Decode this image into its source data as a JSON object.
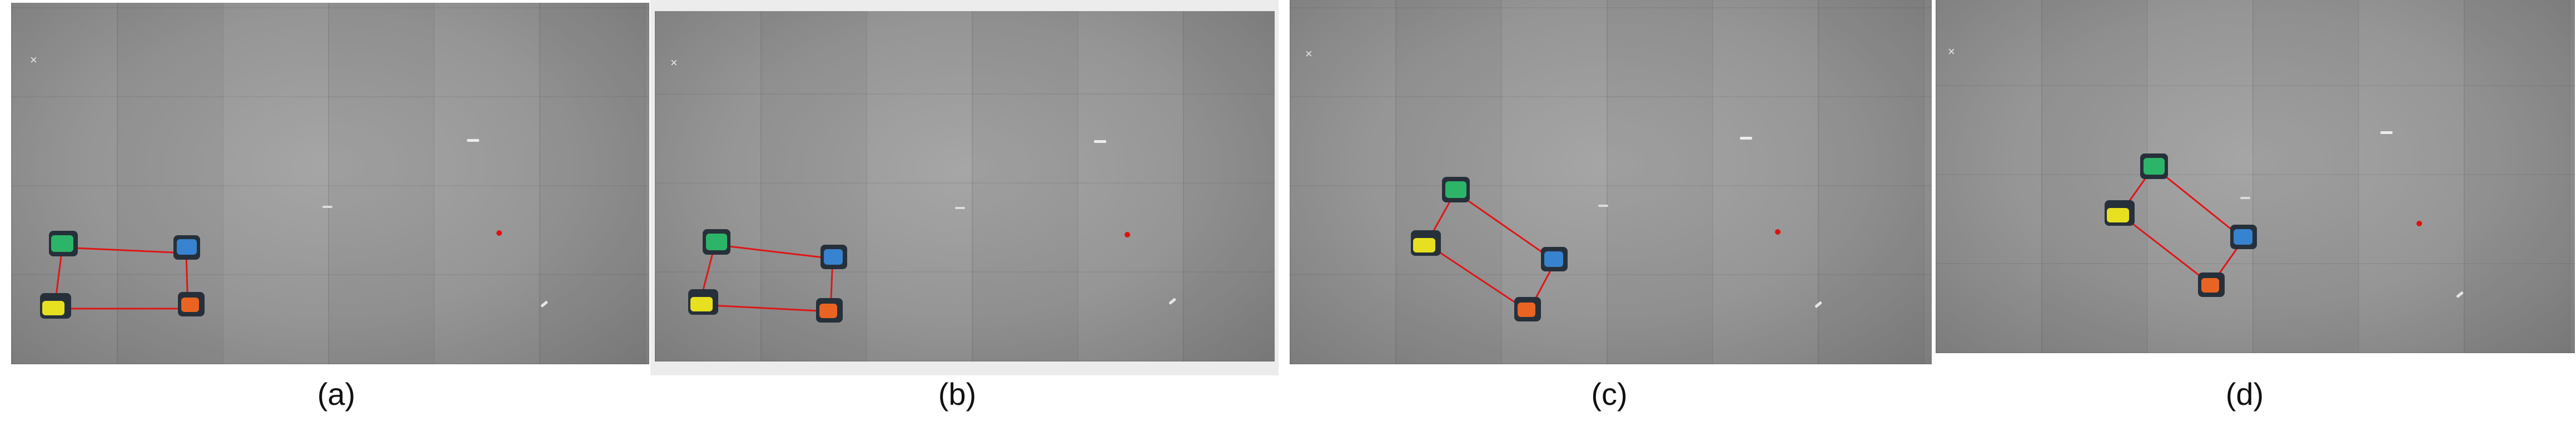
{
  "panels": [
    {
      "caption": "(a)"
    },
    {
      "caption": "(b)"
    },
    {
      "caption": "(c)"
    },
    {
      "caption": "(d)"
    }
  ],
  "colors": {
    "link_line": "#e01515",
    "target_dot": "#e01010",
    "robot_green": "#2ecc71",
    "robot_blue": "#3a8de0",
    "robot_yellow": "#e6e020",
    "robot_orange": "#ff6a20"
  }
}
